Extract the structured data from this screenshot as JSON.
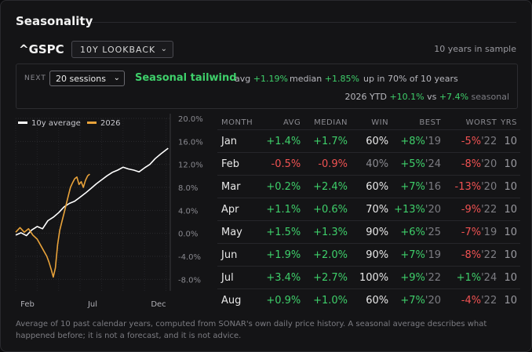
{
  "title": "Seasonality",
  "ticker": "^GSPC",
  "lookback": "10Y LOOKBACK",
  "sample_note": "10 years in sample",
  "next": {
    "label": "NEXT",
    "sessions": "20 sessions",
    "signal": "Seasonal tailwind",
    "avg_label": "avg",
    "avg_value": "+1.19%",
    "median_label": "median",
    "median_value": "+1.85%",
    "up_text": "up in 70% of 10 years",
    "ytd_label": "2026 YTD",
    "ytd_value": "+10.1%",
    "vs_label": "vs",
    "seasonal_value": "+7.4%",
    "seasonal_label": "seasonal"
  },
  "colors": {
    "positive": "#3ecf6a",
    "negative": "#f05252",
    "avg_line": "#ffffff",
    "current_line": "#e8a23a"
  },
  "chart_data": {
    "type": "line",
    "legend": "top-left",
    "yticks": [
      "20.0%",
      "16.0%",
      "12.0%",
      "8.0%",
      "4.0%",
      "0.0%",
      "-4.0%",
      "-8.0%"
    ],
    "xticks": [
      "Feb",
      "Jul",
      "Dec"
    ],
    "ylim": [
      -10,
      20
    ],
    "grid": true,
    "series": [
      {
        "name": "10y average",
        "points": [
          [
            0,
            -0.3
          ],
          [
            0.5,
            0.1
          ],
          [
            1,
            -0.4
          ],
          [
            1.5,
            0.6
          ],
          [
            2,
            1.2
          ],
          [
            2.5,
            0.8
          ],
          [
            3,
            2.2
          ],
          [
            3.5,
            2.8
          ],
          [
            4,
            3.6
          ],
          [
            4.5,
            4.6
          ],
          [
            5,
            5.2
          ],
          [
            5.5,
            5.6
          ],
          [
            6,
            6.3
          ],
          [
            6.5,
            7.0
          ],
          [
            7,
            7.8
          ],
          [
            7.5,
            8.6
          ],
          [
            8,
            9.3
          ],
          [
            8.5,
            10.0
          ],
          [
            9,
            10.6
          ],
          [
            9.5,
            11.0
          ],
          [
            10,
            11.5
          ],
          [
            10.5,
            11.2
          ],
          [
            11,
            11.0
          ],
          [
            11.5,
            10.7
          ],
          [
            12,
            11.4
          ],
          [
            12.5,
            12.0
          ],
          [
            13,
            13.0
          ],
          [
            13.5,
            13.8
          ],
          [
            14,
            14.5
          ],
          [
            14.2,
            14.8
          ]
        ]
      },
      {
        "name": "2026",
        "points": [
          [
            0,
            0.2
          ],
          [
            0.4,
            1.0
          ],
          [
            0.8,
            0.2
          ],
          [
            1.2,
            0.8
          ],
          [
            1.6,
            -0.3
          ],
          [
            2,
            -1.0
          ],
          [
            2.3,
            -2.0
          ],
          [
            2.6,
            -3.0
          ],
          [
            2.9,
            -4.0
          ],
          [
            3.1,
            -5.0
          ],
          [
            3.3,
            -6.2
          ],
          [
            3.5,
            -7.6
          ],
          [
            3.7,
            -6.0
          ],
          [
            3.9,
            -2.0
          ],
          [
            4.1,
            0.5
          ],
          [
            4.3,
            2.0
          ],
          [
            4.5,
            3.5
          ],
          [
            4.7,
            5.0
          ],
          [
            4.9,
            6.5
          ],
          [
            5.1,
            8.0
          ],
          [
            5.3,
            8.8
          ],
          [
            5.5,
            9.5
          ],
          [
            5.7,
            9.8
          ],
          [
            5.9,
            8.5
          ],
          [
            6.1,
            9.0
          ],
          [
            6.3,
            8.0
          ],
          [
            6.5,
            9.2
          ],
          [
            6.7,
            10.0
          ],
          [
            6.9,
            10.3
          ]
        ]
      }
    ]
  },
  "table": {
    "headers": {
      "month": "MONTH",
      "avg": "AVG",
      "median": "MEDIAN",
      "win": "WIN",
      "best": "BEST",
      "worst": "WORST",
      "yrs": "YRS"
    },
    "rows": [
      {
        "month": "Jan",
        "avg": "+1.4%",
        "median": "+1.7%",
        "win": "60%",
        "best": "+8%",
        "best_year": "'19",
        "worst": "-5%",
        "worst_year": "'22",
        "yrs": "10"
      },
      {
        "month": "Feb",
        "avg": "-0.5%",
        "median": "-0.9%",
        "win": "40%",
        "best": "+5%",
        "best_year": "'24",
        "worst": "-8%",
        "worst_year": "'20",
        "yrs": "10"
      },
      {
        "month": "Mar",
        "avg": "+0.2%",
        "median": "+2.4%",
        "win": "60%",
        "best": "+7%",
        "best_year": "'16",
        "worst": "-13%",
        "worst_year": "'20",
        "yrs": "10"
      },
      {
        "month": "Apr",
        "avg": "+1.1%",
        "median": "+0.6%",
        "win": "70%",
        "best": "+13%",
        "best_year": "'20",
        "worst": "-9%",
        "worst_year": "'22",
        "yrs": "10"
      },
      {
        "month": "May",
        "avg": "+1.5%",
        "median": "+1.3%",
        "win": "90%",
        "best": "+6%",
        "best_year": "'25",
        "worst": "-7%",
        "worst_year": "'19",
        "yrs": "10"
      },
      {
        "month": "Jun",
        "avg": "+1.9%",
        "median": "+2.0%",
        "win": "90%",
        "best": "+7%",
        "best_year": "'19",
        "worst": "-8%",
        "worst_year": "'22",
        "yrs": "10"
      },
      {
        "month": "Jul",
        "avg": "+3.4%",
        "median": "+2.7%",
        "win": "100%",
        "best": "+9%",
        "best_year": "'22",
        "worst": "+1%",
        "worst_year": "'24",
        "yrs": "10"
      },
      {
        "month": "Aug",
        "avg": "+0.9%",
        "median": "+1.0%",
        "win": "60%",
        "best": "+7%",
        "best_year": "'20",
        "worst": "-4%",
        "worst_year": "'22",
        "yrs": "10"
      }
    ]
  },
  "footnote": "Average of 10 past calendar years, computed from SONAR's own daily price history. A seasonal average describes what happened before; it is not a forecast, and it is not advice."
}
